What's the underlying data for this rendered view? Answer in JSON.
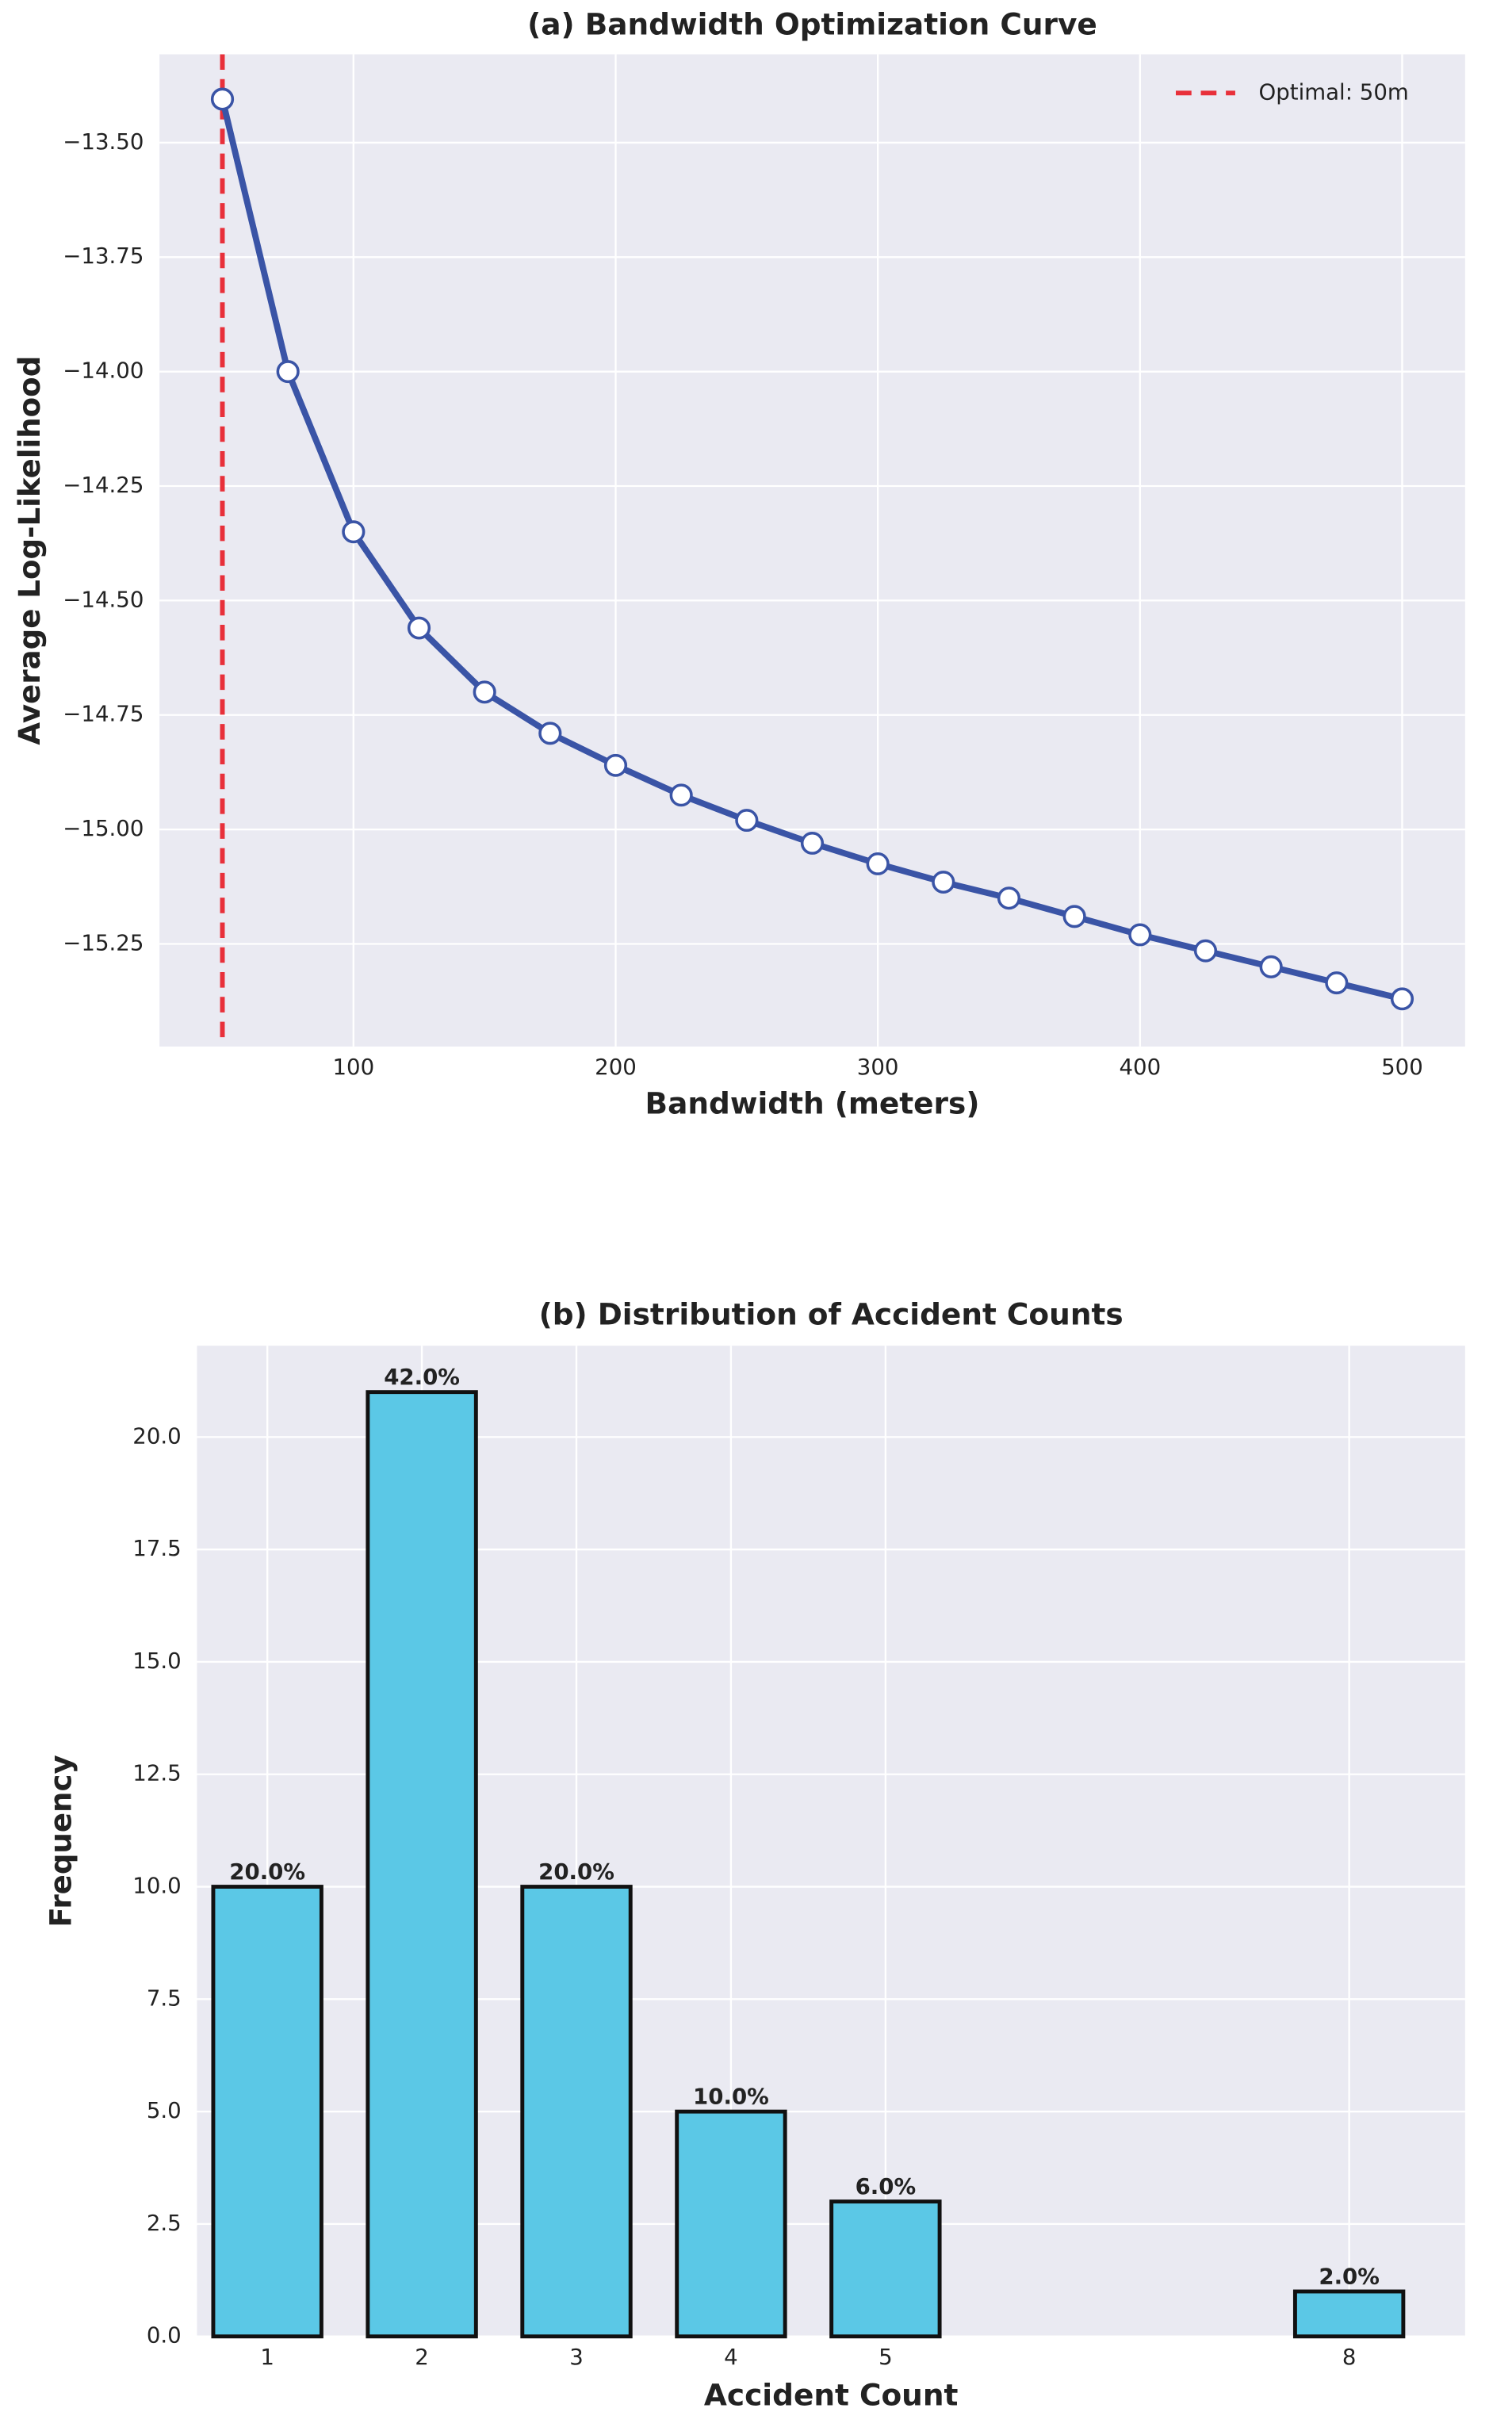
{
  "chart_data": [
    {
      "type": "line",
      "title": "(a) Bandwidth Optimization Curve",
      "xlabel": "Bandwidth (meters)",
      "ylabel": "Average Log-Likelihood",
      "x": [
        50,
        75,
        100,
        125,
        150,
        175,
        200,
        225,
        250,
        275,
        300,
        325,
        350,
        375,
        400,
        425,
        450,
        475,
        500
      ],
      "values": [
        -13.405,
        -14.0,
        -14.35,
        -14.56,
        -14.7,
        -14.79,
        -14.86,
        -14.925,
        -14.98,
        -15.03,
        -15.075,
        -15.115,
        -15.15,
        -15.19,
        -15.23,
        -15.265,
        -15.3,
        -15.335,
        -15.37
      ],
      "color": "#3a54a6",
      "marker_fill": "#ffffff",
      "vline": {
        "x": 50,
        "label": "Optimal: 50m",
        "color": "#e8303a"
      },
      "legend": "upper right",
      "xlim": [
        26,
        524
      ],
      "ylim": [
        -15.474,
        -13.307
      ],
      "xticks": [
        100,
        200,
        300,
        400,
        500
      ],
      "yticks": [
        {
          "value": -15.25,
          "label": "−15.25"
        },
        {
          "value": -15.0,
          "label": "−15.00"
        },
        {
          "value": -14.75,
          "label": "−14.75"
        },
        {
          "value": -14.5,
          "label": "−14.50"
        },
        {
          "value": -14.25,
          "label": "−14.25"
        },
        {
          "value": -14.0,
          "label": "−14.00"
        },
        {
          "value": -13.75,
          "label": "−13.75"
        },
        {
          "value": -13.5,
          "label": "−13.50"
        }
      ],
      "grid": true
    },
    {
      "type": "bar",
      "title": "(b) Distribution of Accident Counts",
      "xlabel": "Accident Count",
      "ylabel": "Frequency",
      "x": [
        1,
        2,
        3,
        4,
        5,
        8
      ],
      "values": [
        10,
        21,
        10,
        5,
        3,
        1
      ],
      "value_labels": [
        "20.0%",
        "42.0%",
        "20.0%",
        "10.0%",
        "6.0%",
        "2.0%"
      ],
      "color": "#5bc8e6",
      "edgecolor": "#111111",
      "xlim": [
        0.545,
        8.75
      ],
      "ylim": [
        0,
        22.03
      ],
      "xticks": [
        1,
        2,
        3,
        4,
        5,
        8
      ],
      "yticks": [
        {
          "value": 0,
          "label": "0.0"
        },
        2.5,
        {
          "value": 5,
          "label": "5.0"
        },
        7.5,
        {
          "value": 10,
          "label": "10.0"
        },
        12.5,
        {
          "value": 15,
          "label": "15.0"
        },
        17.5,
        {
          "value": 20,
          "label": "20.0"
        }
      ],
      "grid": true
    }
  ]
}
